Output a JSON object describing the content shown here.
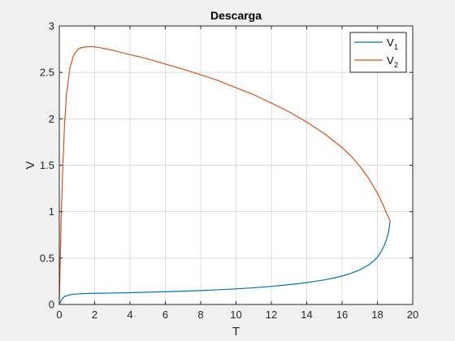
{
  "chart_data": {
    "type": "line",
    "title": "Descarga",
    "xlabel": "T",
    "ylabel": "V",
    "xlim": [
      0,
      20
    ],
    "ylim": [
      0,
      3
    ],
    "xticks": [
      "0",
      "2",
      "4",
      "6",
      "8",
      "10",
      "12",
      "14",
      "16",
      "18",
      "20"
    ],
    "yticks": [
      "0",
      "0.5",
      "1",
      "1.5",
      "2",
      "2.5",
      "3"
    ],
    "grid": true,
    "legend_position": "top-right",
    "series": [
      {
        "name": "V",
        "name_subscript": "1",
        "color": "#0072BD",
        "x": [
          0,
          0.1,
          0.2,
          0.3,
          0.5,
          0.7,
          1.0,
          1.5,
          2,
          3,
          4,
          5,
          6,
          7,
          8,
          9,
          10,
          11,
          12,
          13,
          14,
          15,
          15.5,
          16,
          16.5,
          17,
          17.5,
          17.8,
          18.0,
          18.2,
          18.4,
          18.55,
          18.65,
          18.72
        ],
        "y": [
          0,
          0.04,
          0.07,
          0.085,
          0.1,
          0.108,
          0.113,
          0.118,
          0.12,
          0.123,
          0.127,
          0.132,
          0.137,
          0.143,
          0.15,
          0.158,
          0.168,
          0.18,
          0.195,
          0.213,
          0.235,
          0.265,
          0.283,
          0.306,
          0.335,
          0.372,
          0.425,
          0.47,
          0.51,
          0.565,
          0.64,
          0.72,
          0.8,
          0.9
        ]
      },
      {
        "name": "V",
        "name_subscript": "2",
        "color": "#D95319",
        "x": [
          0,
          0.1,
          0.2,
          0.3,
          0.4,
          0.6,
          0.8,
          1.0,
          1.2,
          1.5,
          1.8,
          2.2,
          2.6,
          3,
          3.5,
          4,
          4.5,
          5,
          6,
          7,
          8,
          9,
          10,
          11,
          12,
          13,
          14,
          15,
          16,
          16.5,
          17,
          17.5,
          18,
          18.3,
          18.5,
          18.65,
          18.72
        ],
        "y": [
          0,
          0.9,
          1.5,
          1.95,
          2.25,
          2.55,
          2.68,
          2.74,
          2.765,
          2.775,
          2.778,
          2.77,
          2.755,
          2.74,
          2.715,
          2.69,
          2.67,
          2.645,
          2.59,
          2.535,
          2.475,
          2.41,
          2.335,
          2.26,
          2.17,
          2.075,
          1.965,
          1.84,
          1.69,
          1.6,
          1.49,
          1.36,
          1.2,
          1.08,
          0.99,
          0.93,
          0.9
        ]
      }
    ]
  }
}
